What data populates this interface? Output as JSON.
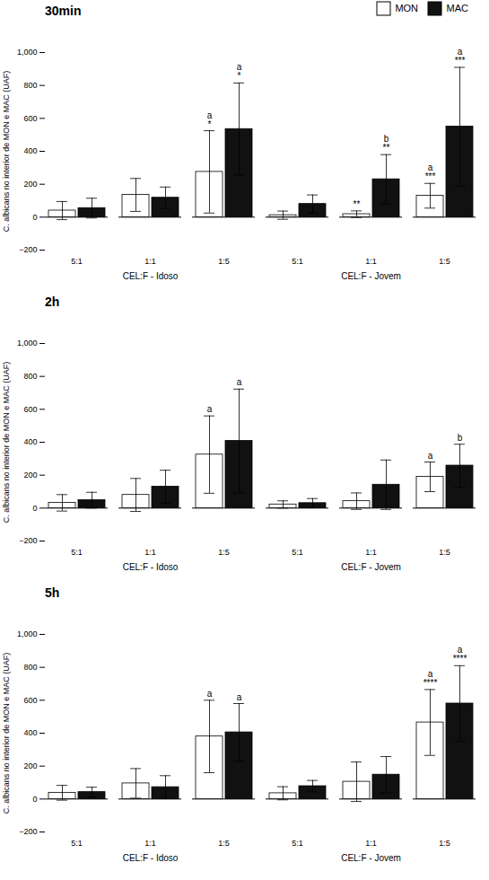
{
  "chart_data": [
    {
      "type": "bar",
      "title": "30min",
      "ylabel": "C. albicans no interior de MON e MAC (UAF)",
      "groups": [
        {
          "name": "CEL:F - Idoso",
          "categories": [
            "5:1",
            "1:1",
            "1:5"
          ]
        },
        {
          "name": "CEL:F - Jovem",
          "categories": [
            "5:1",
            "1:1",
            "1:5"
          ]
        }
      ],
      "series": [
        {
          "name": "MON",
          "color": "#ffffff",
          "values": [
            40,
            135,
            275,
            12,
            18,
            130
          ],
          "errors": [
            55,
            100,
            250,
            25,
            20,
            75
          ],
          "annotations": [
            null,
            null,
            "a\n*",
            null,
            "**",
            "a\n***"
          ]
        },
        {
          "name": "MAC",
          "color": "#111111",
          "values": [
            55,
            118,
            535,
            80,
            230,
            550
          ],
          "errors": [
            60,
            65,
            280,
            55,
            150,
            360
          ],
          "annotations": [
            null,
            null,
            "a\n*",
            null,
            "b\n**",
            "a\n***"
          ]
        }
      ],
      "ylim": [
        -200,
        1000
      ],
      "yticks": [
        -200,
        0,
        200,
        400,
        600,
        800,
        1000
      ],
      "legend": "upper right"
    },
    {
      "type": "bar",
      "title": "2h",
      "ylabel": "C. albicans no interior de MON e MAC (UAF)",
      "groups": [
        {
          "name": "CEL:F - Idoso",
          "categories": [
            "5:1",
            "1:1",
            "1:5"
          ]
        },
        {
          "name": "CEL:F - Jovem",
          "categories": [
            "5:1",
            "1:1",
            "1:5"
          ]
        }
      ],
      "series": [
        {
          "name": "MON",
          "color": "#ffffff",
          "values": [
            32,
            80,
            325,
            22,
            42,
            190
          ],
          "errors": [
            50,
            100,
            235,
            22,
            50,
            90
          ],
          "annotations": [
            null,
            null,
            "a",
            null,
            null,
            "a"
          ]
        },
        {
          "name": "MAC",
          "color": "#111111",
          "values": [
            48,
            130,
            408,
            30,
            142,
            258
          ],
          "errors": [
            48,
            100,
            315,
            28,
            150,
            130
          ],
          "annotations": [
            null,
            null,
            "a",
            null,
            null,
            "b"
          ]
        }
      ],
      "ylim": [
        -200,
        1000
      ],
      "yticks": [
        -200,
        0,
        200,
        400,
        600,
        800,
        1000
      ]
    },
    {
      "type": "bar",
      "title": "5h",
      "ylabel": "C. albicans no interior de MON e MAC (UAF)",
      "groups": [
        {
          "name": "CEL:F - Idoso",
          "categories": [
            "5:1",
            "1:1",
            "1:5"
          ]
        },
        {
          "name": "CEL:F - Jovem",
          "categories": [
            "5:1",
            "1:1",
            "1:5"
          ]
        }
      ],
      "series": [
        {
          "name": "MON",
          "color": "#ffffff",
          "values": [
            38,
            95,
            380,
            35,
            105,
            465
          ],
          "errors": [
            45,
            90,
            220,
            40,
            120,
            200
          ],
          "annotations": [
            null,
            null,
            "a",
            null,
            null,
            "a\n****"
          ]
        },
        {
          "name": "MAC",
          "color": "#111111",
          "values": [
            42,
            72,
            405,
            78,
            148,
            580
          ],
          "errors": [
            30,
            70,
            175,
            35,
            110,
            230
          ],
          "annotations": [
            null,
            null,
            "a",
            null,
            null,
            "a\n****"
          ]
        }
      ],
      "ylim": [
        -200,
        1000
      ],
      "yticks": [
        -200,
        0,
        200,
        400,
        600,
        800,
        1000
      ]
    }
  ]
}
